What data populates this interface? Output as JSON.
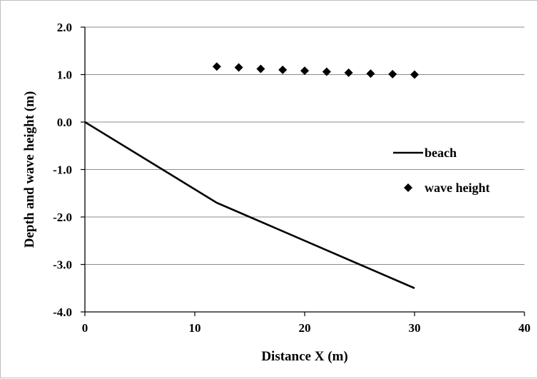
{
  "chart_data": {
    "type": "line",
    "xlabel": "Distance X (m)",
    "ylabel": "Depth and wave height (m)",
    "xlim": [
      0,
      40
    ],
    "ylim": [
      -4,
      2
    ],
    "x_ticks": [
      "0",
      "10",
      "20",
      "30",
      "40"
    ],
    "y_ticks": [
      "2.0",
      "1.0",
      "0.0",
      "-1.0",
      "-2.0",
      "-3.0",
      "-4.0"
    ],
    "grid": "horizontal",
    "legend_position": "right",
    "series": [
      {
        "name": "beach",
        "style": "line",
        "color": "#000000",
        "points": [
          [
            0,
            0
          ],
          [
            12,
            -1.7
          ],
          [
            30,
            -3.5
          ]
        ]
      },
      {
        "name": "wave height",
        "style": "marker-diamond",
        "color": "#000000",
        "points": [
          [
            12,
            1.17
          ],
          [
            14,
            1.15
          ],
          [
            16,
            1.12
          ],
          [
            18,
            1.1
          ],
          [
            20,
            1.08
          ],
          [
            22,
            1.06
          ],
          [
            24,
            1.04
          ],
          [
            26,
            1.02
          ],
          [
            28,
            1.01
          ],
          [
            30,
            1.0
          ]
        ]
      }
    ]
  }
}
